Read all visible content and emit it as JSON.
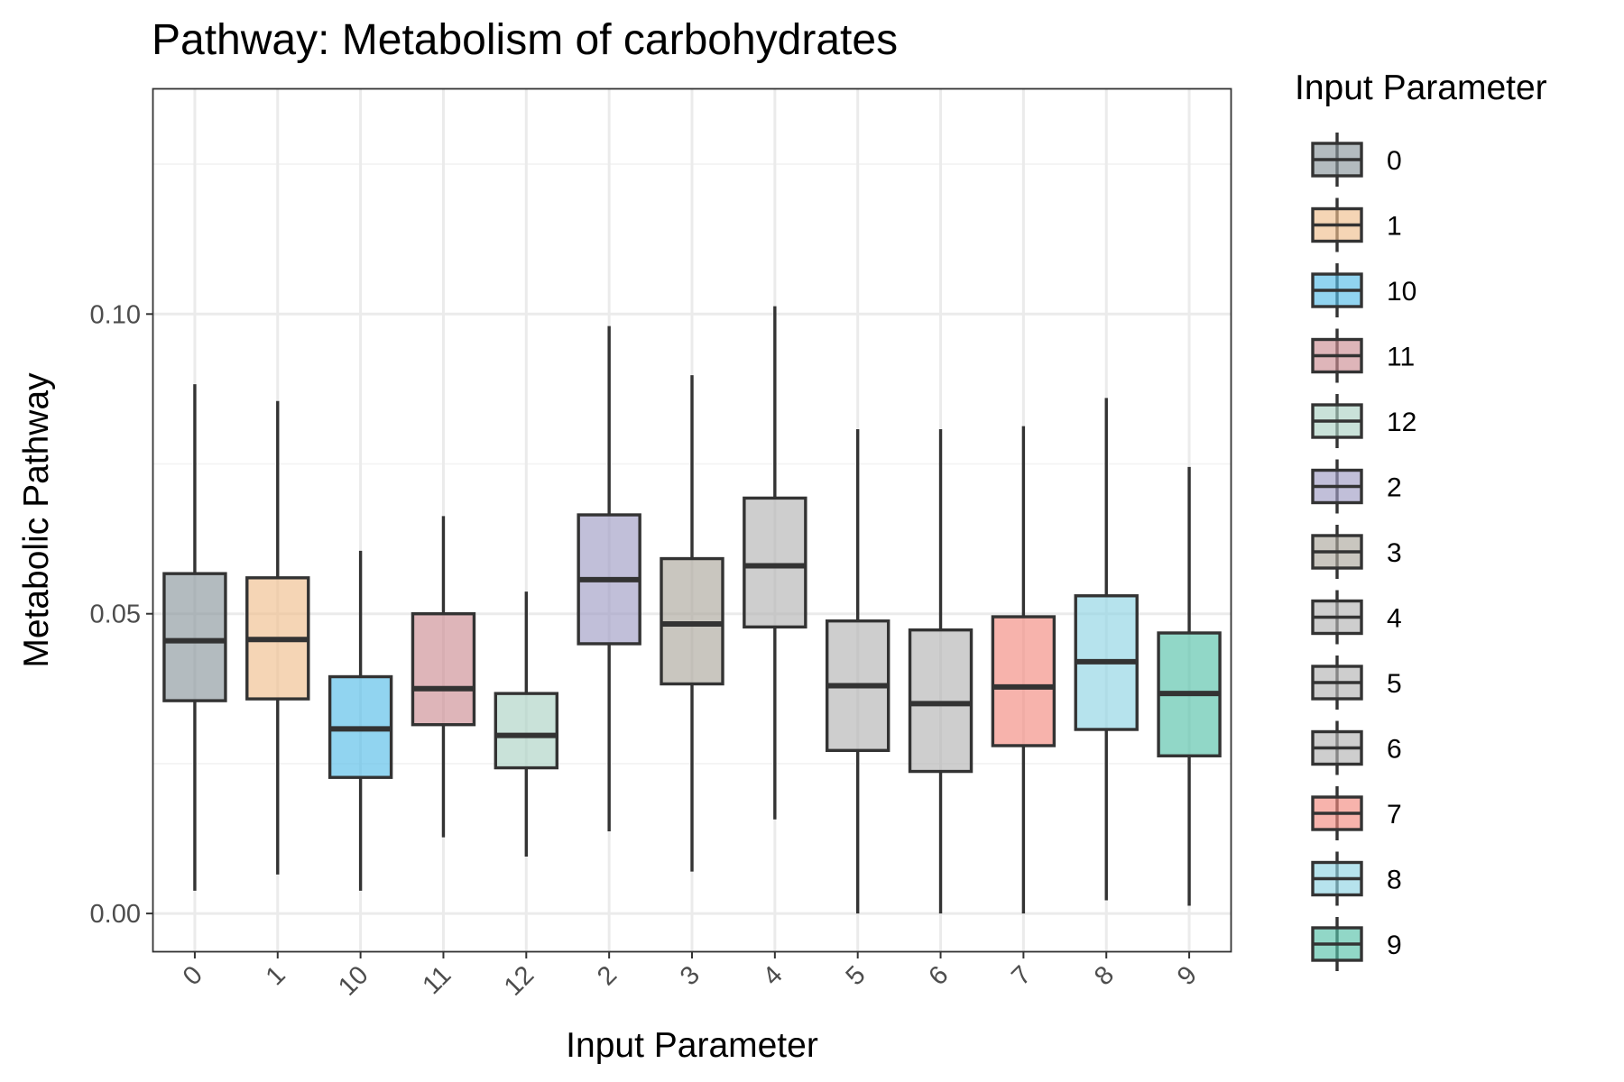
{
  "chart_data": {
    "type": "boxplot",
    "title": "Pathway: Metabolism of carbohydrates",
    "xlabel": "Input Parameter",
    "ylabel": "Metabolic Pathway",
    "ylim": [
      -0.0063,
      0.1375
    ],
    "yticks": [
      0.0,
      0.05,
      0.1
    ],
    "ytick_labels": [
      "0.00",
      "0.05",
      "0.10"
    ],
    "grid": true,
    "legend": {
      "title": "Input Parameter",
      "placement": "right"
    },
    "categories": [
      "0",
      "1",
      "10",
      "11",
      "12",
      "2",
      "3",
      "4",
      "5",
      "6",
      "7",
      "8",
      "9"
    ],
    "series": [
      {
        "name": "0",
        "color": "#8a979c",
        "whisker_low": 0.0038,
        "q1": 0.0355,
        "median": 0.0455,
        "q3": 0.0567,
        "whisker_high": 0.0883
      },
      {
        "name": "1",
        "color": "#f0be8d",
        "whisker_low": 0.0065,
        "q1": 0.0358,
        "median": 0.0457,
        "q3": 0.056,
        "whisker_high": 0.0855
      },
      {
        "name": "10",
        "color": "#56bde8",
        "whisker_low": 0.0038,
        "q1": 0.0227,
        "median": 0.0308,
        "q3": 0.0395,
        "whisker_high": 0.0605
      },
      {
        "name": "11",
        "color": "#cc8e94",
        "whisker_low": 0.0127,
        "q1": 0.0315,
        "median": 0.0375,
        "q3": 0.05,
        "whisker_high": 0.0663
      },
      {
        "name": "12",
        "color": "#acd3c5",
        "whisker_low": 0.0095,
        "q1": 0.0243,
        "median": 0.0297,
        "q3": 0.0367,
        "whisker_high": 0.0537
      },
      {
        "name": "2",
        "color": "#9f9cc4",
        "whisker_low": 0.0137,
        "q1": 0.045,
        "median": 0.0557,
        "q3": 0.0665,
        "whisker_high": 0.098
      },
      {
        "name": "3",
        "color": "#aca79d",
        "whisker_low": 0.007,
        "q1": 0.0383,
        "median": 0.0483,
        "q3": 0.0592,
        "whisker_high": 0.0898
      },
      {
        "name": "4",
        "color": "#b3b3b3",
        "whisker_low": 0.0157,
        "q1": 0.0478,
        "median": 0.058,
        "q3": 0.0693,
        "whisker_high": 0.1013
      },
      {
        "name": "5",
        "color": "#b3b3b3",
        "whisker_low": 0.0,
        "q1": 0.0272,
        "median": 0.038,
        "q3": 0.0488,
        "whisker_high": 0.0808
      },
      {
        "name": "6",
        "color": "#b3b3b3",
        "whisker_low": 0.0,
        "q1": 0.0237,
        "median": 0.035,
        "q3": 0.0473,
        "whisker_high": 0.0808
      },
      {
        "name": "7",
        "color": "#f28a80",
        "whisker_low": 0.0,
        "q1": 0.028,
        "median": 0.0378,
        "q3": 0.0495,
        "whisker_high": 0.0813
      },
      {
        "name": "8",
        "color": "#8fd4e3",
        "whisker_low": 0.0022,
        "q1": 0.0307,
        "median": 0.042,
        "q3": 0.053,
        "whisker_high": 0.086
      },
      {
        "name": "9",
        "color": "#56c2a9",
        "whisker_low": 0.0013,
        "q1": 0.0263,
        "median": 0.0367,
        "q3": 0.0468,
        "whisker_high": 0.0745
      }
    ]
  }
}
